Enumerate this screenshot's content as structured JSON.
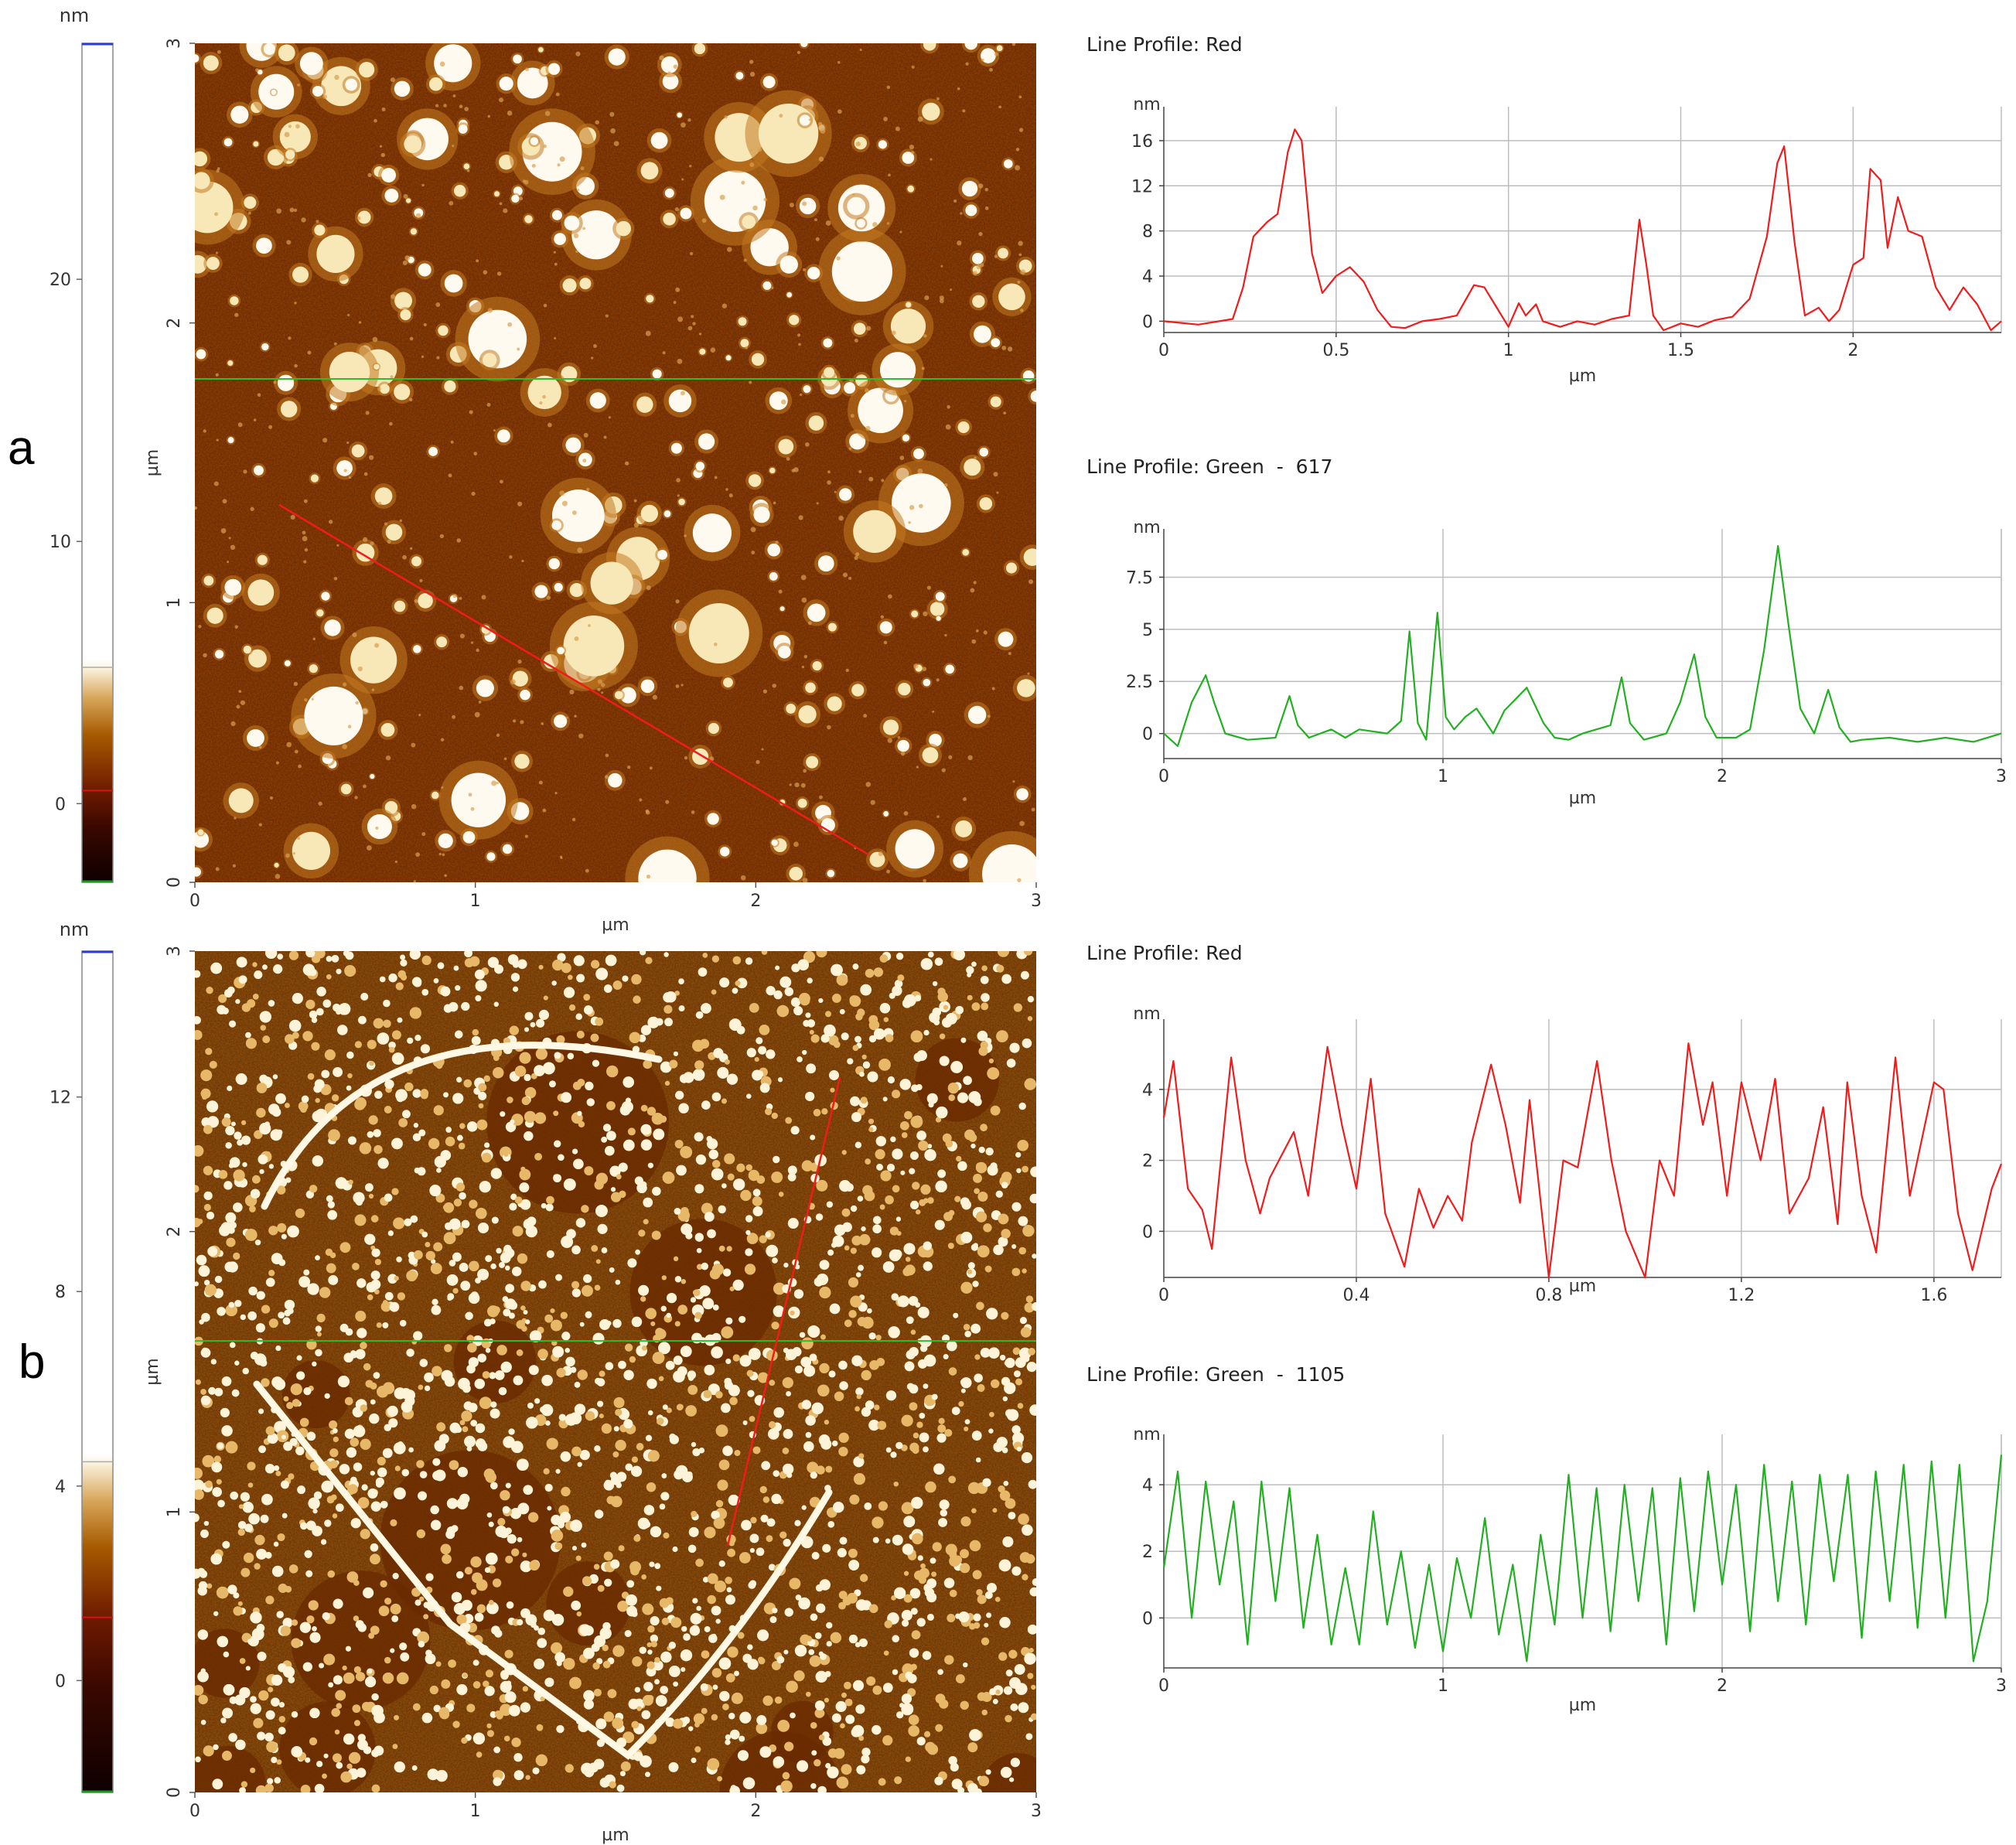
{
  "panels": [
    {
      "letter": "a",
      "colorbar": {
        "unit": "nm",
        "ticks": [
          "0",
          "10",
          "20"
        ],
        "min": -3,
        "max": 29,
        "satur_at": 5.2,
        "red_at": 0.5
      },
      "image": {
        "xlabel": "µm",
        "ylabel": "µm",
        "xticks": [
          "0",
          "1",
          "2",
          "3"
        ],
        "yticks": [
          "0",
          "1",
          "2",
          "3"
        ],
        "range": [
          0,
          3
        ],
        "green_line_y": 1.8,
        "red_line": [
          [
            0.3,
            1.35
          ],
          [
            2.4,
            0.1
          ]
        ],
        "pattern": "particles",
        "seed": 11
      },
      "profiles": [
        {
          "title": "Line Profile: Red",
          "color": "#f01c1c",
          "unit": "nm",
          "xlabel": "µm",
          "xlim": [
            0,
            2.43
          ],
          "ylim": [
            -1,
            17.5
          ],
          "xticks": [
            0,
            0.5,
            1,
            1.5,
            2
          ],
          "xtick_labels": [
            "0",
            "0.5",
            "1",
            "1.5",
            "2"
          ],
          "yticks": [
            0,
            4,
            8,
            12,
            16
          ],
          "ytick_labels": [
            "0",
            "4",
            "8",
            "12",
            "16"
          ],
          "chart_data": {
            "type": "line",
            "x": [
              0,
              0.1,
              0.2,
              0.23,
              0.26,
              0.3,
              0.33,
              0.36,
              0.38,
              0.4,
              0.43,
              0.46,
              0.5,
              0.54,
              0.58,
              0.62,
              0.66,
              0.7,
              0.75,
              0.8,
              0.85,
              0.9,
              0.93,
              0.96,
              1.0,
              1.03,
              1.05,
              1.08,
              1.1,
              1.15,
              1.2,
              1.25,
              1.3,
              1.35,
              1.38,
              1.4,
              1.42,
              1.45,
              1.5,
              1.55,
              1.6,
              1.65,
              1.7,
              1.75,
              1.78,
              1.8,
              1.83,
              1.86,
              1.9,
              1.93,
              1.96,
              2.0,
              2.03,
              2.05,
              2.08,
              2.1,
              2.13,
              2.16,
              2.2,
              2.24,
              2.28,
              2.32,
              2.36,
              2.4,
              2.43
            ],
            "y": [
              0,
              -0.3,
              0.2,
              3,
              7.5,
              8.8,
              9.5,
              15,
              17,
              16,
              6,
              2.5,
              4,
              4.8,
              3.5,
              1,
              -0.5,
              -0.6,
              0,
              0.2,
              0.5,
              3.2,
              3,
              1.5,
              -0.5,
              1.6,
              0.5,
              1.5,
              0,
              -0.5,
              0,
              -0.3,
              0.2,
              0.5,
              9,
              5,
              0.5,
              -0.8,
              -0.2,
              -0.5,
              0.1,
              0.4,
              2,
              7.5,
              14,
              15.5,
              7,
              0.5,
              1.2,
              0,
              1,
              5,
              5.6,
              13.5,
              12.5,
              6.5,
              11,
              8,
              7.5,
              3,
              1,
              3,
              1.5,
              -0.8,
              0
            ]
          }
        },
        {
          "title": "Line Profile: Green  -  617",
          "color": "#22b022",
          "unit": "nm",
          "xlabel": "µm",
          "xlim": [
            0,
            3
          ],
          "ylim": [
            -1.2,
            9
          ],
          "xticks": [
            0,
            1,
            2,
            3
          ],
          "xtick_labels": [
            "0",
            "1",
            "2",
            "3"
          ],
          "yticks": [
            0,
            2.5,
            5,
            7.5
          ],
          "ytick_labels": [
            "0",
            "2.5",
            "5",
            "7.5"
          ],
          "chart_data": {
            "type": "line",
            "x": [
              0,
              0.05,
              0.1,
              0.15,
              0.18,
              0.22,
              0.3,
              0.4,
              0.45,
              0.48,
              0.52,
              0.6,
              0.65,
              0.7,
              0.8,
              0.85,
              0.88,
              0.91,
              0.94,
              0.98,
              1.01,
              1.04,
              1.08,
              1.12,
              1.18,
              1.22,
              1.3,
              1.36,
              1.4,
              1.45,
              1.5,
              1.6,
              1.64,
              1.67,
              1.72,
              1.8,
              1.85,
              1.9,
              1.94,
              1.98,
              2.05,
              2.1,
              2.15,
              2.2,
              2.24,
              2.28,
              2.33,
              2.38,
              2.42,
              2.46,
              2.5,
              2.6,
              2.7,
              2.8,
              2.9,
              3.0
            ],
            "y": [
              0,
              -0.6,
              1.5,
              2.8,
              1.5,
              0,
              -0.3,
              -0.2,
              1.8,
              0.4,
              -0.2,
              0.2,
              -0.2,
              0.2,
              0,
              0.6,
              4.9,
              0.5,
              -0.3,
              5.8,
              0.8,
              0.2,
              0.8,
              1.2,
              0,
              1.1,
              2.2,
              0.5,
              -0.2,
              -0.3,
              0,
              0.4,
              2.7,
              0.5,
              -0.3,
              0,
              1.5,
              3.8,
              0.8,
              -0.2,
              -0.2,
              0.2,
              4,
              9,
              5,
              1.2,
              0,
              2.1,
              0.3,
              -0.4,
              -0.3,
              -0.2,
              -0.4,
              -0.2,
              -0.4,
              0
            ]
          }
        }
      ]
    },
    {
      "letter": "b",
      "colorbar": {
        "unit": "nm",
        "ticks": [
          "0",
          "4",
          "8",
          "12"
        ],
        "min": -2.3,
        "max": 15,
        "satur_at": 4.5,
        "red_at": 1.3
      },
      "image": {
        "xlabel": "µm",
        "ylabel": "µm",
        "xticks": [
          "0",
          "1",
          "2",
          "3"
        ],
        "yticks": [
          "0",
          "1",
          "2",
          "3"
        ],
        "range": [
          0,
          3
        ],
        "green_line_y": 1.61,
        "red_line": [
          [
            1.9,
            0.88
          ],
          [
            2.3,
            2.55
          ]
        ],
        "pattern": "network",
        "seed": 29
      },
      "profiles": [
        {
          "title": "Line Profile: Red",
          "color": "#f01c1c",
          "unit": "nm",
          "xlabel": "µm",
          "xlim": [
            0,
            1.74
          ],
          "ylim": [
            -1.3,
            5.5
          ],
          "xticks": [
            0,
            0.4,
            0.8,
            1.2,
            1.6
          ],
          "xtick_labels": [
            "0",
            "0.4",
            "0.8",
            "1.2",
            "1.6"
          ],
          "yticks": [
            0,
            2,
            4
          ],
          "ytick_labels": [
            "0",
            "2",
            "4"
          ],
          "chart_data": {
            "type": "line",
            "x": [
              0,
              0.02,
              0.05,
              0.08,
              0.1,
              0.14,
              0.17,
              0.2,
              0.22,
              0.27,
              0.3,
              0.34,
              0.37,
              0.4,
              0.43,
              0.46,
              0.5,
              0.53,
              0.56,
              0.59,
              0.62,
              0.64,
              0.68,
              0.71,
              0.74,
              0.76,
              0.8,
              0.83,
              0.86,
              0.9,
              0.93,
              0.96,
              1.0,
              1.03,
              1.06,
              1.09,
              1.12,
              1.14,
              1.17,
              1.2,
              1.24,
              1.27,
              1.3,
              1.34,
              1.37,
              1.4,
              1.42,
              1.45,
              1.48,
              1.52,
              1.55,
              1.6,
              1.62,
              1.65,
              1.68,
              1.72,
              1.74
            ],
            "y": [
              3.2,
              4.8,
              1.2,
              0.6,
              -0.5,
              4.9,
              2.0,
              0.5,
              1.5,
              2.8,
              1.0,
              5.2,
              3.0,
              1.2,
              4.3,
              0.5,
              -1.0,
              1.2,
              0.1,
              1.0,
              0.3,
              2.5,
              4.7,
              3.0,
              0.8,
              3.7,
              -1.3,
              2.0,
              1.8,
              4.8,
              2.0,
              0.0,
              -1.3,
              2.0,
              1.0,
              5.3,
              3.0,
              4.2,
              1.0,
              4.2,
              2.0,
              4.3,
              0.5,
              1.5,
              3.5,
              0.2,
              4.2,
              1.0,
              -0.6,
              4.9,
              1.0,
              4.2,
              4.0,
              0.5,
              -1.1,
              1.2,
              1.9
            ]
          }
        },
        {
          "title": "Line Profile: Green  -  1105",
          "color": "#22b022",
          "unit": "nm",
          "xlabel": "µm",
          "xlim": [
            0,
            3
          ],
          "ylim": [
            -1.5,
            5
          ],
          "xticks": [
            0,
            1,
            2,
            3
          ],
          "xtick_labels": [
            "0",
            "1",
            "2",
            "3"
          ],
          "yticks": [
            0,
            2,
            4
          ],
          "ytick_labels": [
            "0",
            "2",
            "4"
          ],
          "chart_data": {
            "type": "line",
            "x": [
              0,
              0.05,
              0.1,
              0.15,
              0.2,
              0.25,
              0.3,
              0.35,
              0.4,
              0.45,
              0.5,
              0.55,
              0.6,
              0.65,
              0.7,
              0.75,
              0.8,
              0.85,
              0.9,
              0.95,
              1.0,
              1.05,
              1.1,
              1.15,
              1.2,
              1.25,
              1.3,
              1.35,
              1.4,
              1.45,
              1.5,
              1.55,
              1.6,
              1.65,
              1.7,
              1.75,
              1.8,
              1.85,
              1.9,
              1.95,
              2.0,
              2.05,
              2.1,
              2.15,
              2.2,
              2.25,
              2.3,
              2.35,
              2.4,
              2.45,
              2.5,
              2.55,
              2.6,
              2.65,
              2.7,
              2.75,
              2.8,
              2.85,
              2.9,
              2.95,
              3.0
            ],
            "y": [
              1.5,
              4.4,
              0.0,
              4.1,
              1.0,
              3.5,
              -0.8,
              4.1,
              0.5,
              3.9,
              -0.3,
              2.5,
              -0.8,
              1.5,
              -0.8,
              3.2,
              -0.2,
              2.0,
              -0.9,
              1.6,
              -1.0,
              1.8,
              0.0,
              3.0,
              -0.5,
              1.6,
              -1.3,
              2.5,
              -0.2,
              4.3,
              0.0,
              3.9,
              -0.4,
              4.0,
              0.5,
              3.9,
              -0.8,
              4.2,
              0.2,
              4.4,
              1.0,
              4.0,
              -0.4,
              4.6,
              0.5,
              4.1,
              -0.2,
              4.3,
              1.1,
              4.3,
              -0.6,
              4.4,
              0.5,
              4.6,
              -0.3,
              4.7,
              0.0,
              4.6,
              -1.3,
              0.5,
              4.9
            ]
          }
        }
      ]
    }
  ]
}
